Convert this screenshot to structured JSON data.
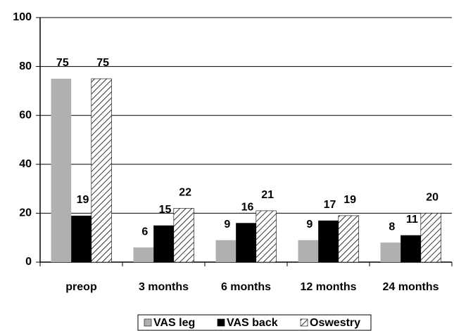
{
  "chart_data": {
    "type": "bar",
    "categories": [
      "preop",
      "3 months",
      "6 months",
      "12 months",
      "24 months"
    ],
    "series": [
      {
        "name": "VAS leg",
        "color": "#b0b0b0",
        "values": [
          75,
          6,
          9,
          9,
          8
        ]
      },
      {
        "name": "VAS back",
        "color": "#000000",
        "values": [
          19,
          15,
          16,
          17,
          11
        ]
      },
      {
        "name": "Oswestry",
        "color": "#ffffff",
        "pattern": "hatch",
        "values": [
          75,
          22,
          21,
          19,
          20
        ]
      }
    ],
    "ylim": [
      0,
      100
    ],
    "yticks": [
      0,
      20,
      40,
      60,
      80,
      100
    ],
    "grid": true,
    "legend": "bottom"
  }
}
